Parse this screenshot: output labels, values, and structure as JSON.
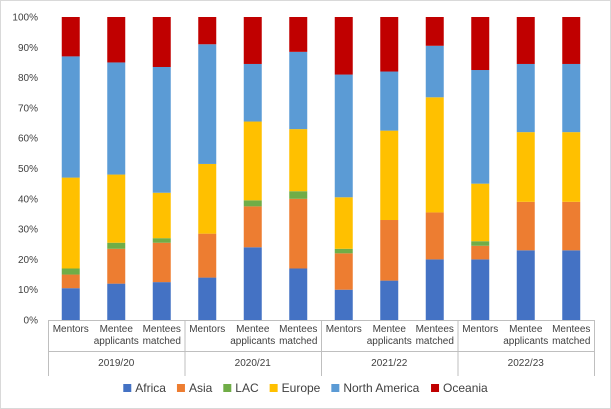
{
  "chart_data": {
    "type": "bar",
    "stacked": true,
    "percent": true,
    "ylim": [
      0,
      100
    ],
    "ytick_step": 10,
    "ytick_suffix": "%",
    "grid": false,
    "legend_position": "bottom",
    "groups": [
      {
        "label": "2019/20",
        "categories": [
          "Mentors",
          "Mentee applicants",
          "Mentees matched"
        ]
      },
      {
        "label": "2020/21",
        "categories": [
          "Mentors",
          "Mentee applicants",
          "Mentees matched"
        ]
      },
      {
        "label": "2021/22",
        "categories": [
          "Mentors",
          "Mentee applicants",
          "Mentees matched"
        ]
      },
      {
        "label": "2022/23",
        "categories": [
          "Mentors",
          "Mentee applicants",
          "Mentees matched"
        ]
      }
    ],
    "category_lines": {
      "Mentors": [
        "Mentors"
      ],
      "Mentee applicants": [
        "Mentee",
        "applicants"
      ],
      "Mentees matched": [
        "Mentees",
        "matched"
      ]
    },
    "series": [
      {
        "name": "Africa",
        "color": "#4472C4",
        "values": [
          10.5,
          12,
          12.5,
          14,
          24,
          17,
          10,
          13,
          20,
          20,
          23,
          23
        ]
      },
      {
        "name": "Asia",
        "color": "#ED7D31",
        "values": [
          4.5,
          11.5,
          13,
          14.5,
          13.5,
          23,
          12,
          20,
          15.5,
          4.5,
          16,
          16
        ]
      },
      {
        "name": "LAC",
        "color": "#70AD47",
        "values": [
          2,
          2,
          1.5,
          0,
          2,
          2.5,
          1.5,
          0,
          0,
          1.5,
          0,
          0
        ]
      },
      {
        "name": "Europe",
        "color": "#FFC000",
        "values": [
          30,
          22.5,
          15,
          23,
          26,
          20.5,
          17,
          29.5,
          38,
          19,
          23,
          23
        ]
      },
      {
        "name": "North America",
        "color": "#5B9BD5",
        "values": [
          40,
          37,
          41.5,
          39.5,
          19,
          25.5,
          40.5,
          19.5,
          17,
          37.5,
          22.5,
          22.5
        ]
      },
      {
        "name": "Oceania",
        "color": "#C00000",
        "values": [
          13,
          15,
          16.5,
          9,
          15.5,
          11.5,
          19,
          18,
          9.5,
          17.5,
          15.5,
          15.5
        ]
      }
    ]
  }
}
